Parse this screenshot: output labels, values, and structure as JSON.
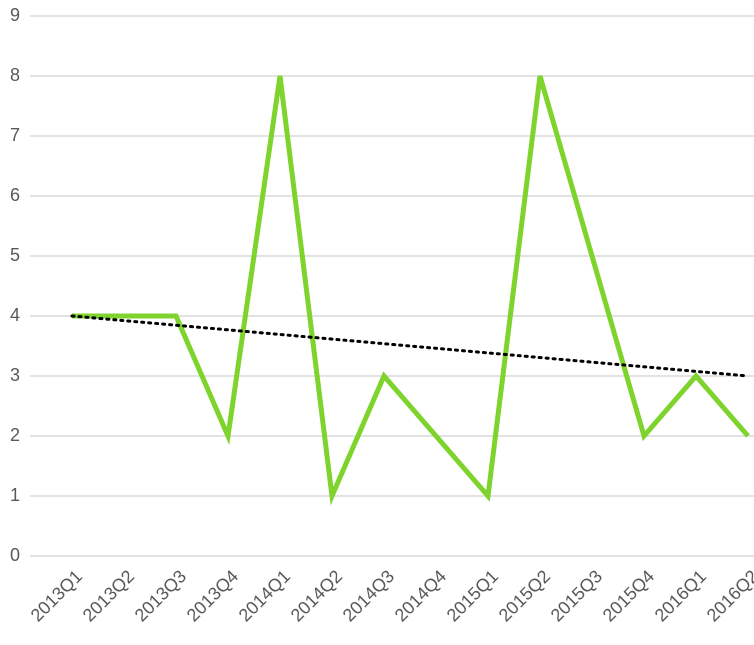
{
  "chart_data": {
    "type": "line",
    "categories": [
      "2013Q1",
      "2013Q2",
      "2013Q3",
      "2013Q4",
      "2014Q1",
      "2014Q2",
      "2014Q3",
      "2014Q4",
      "2015Q1",
      "2015Q2",
      "2015Q3",
      "2015Q4",
      "2016Q1",
      "2016Q2"
    ],
    "values": [
      4,
      4,
      4,
      2,
      8,
      1,
      3,
      2,
      1,
      8,
      5,
      2,
      3,
      2
    ],
    "color": "#7ed32c",
    "trendline": {
      "values": [
        4,
        3
      ],
      "color": "#000000"
    },
    "ylim": [
      0,
      9
    ],
    "yticks": [
      0,
      1,
      2,
      3,
      4,
      5,
      6,
      7,
      8,
      9
    ],
    "grid": true
  }
}
